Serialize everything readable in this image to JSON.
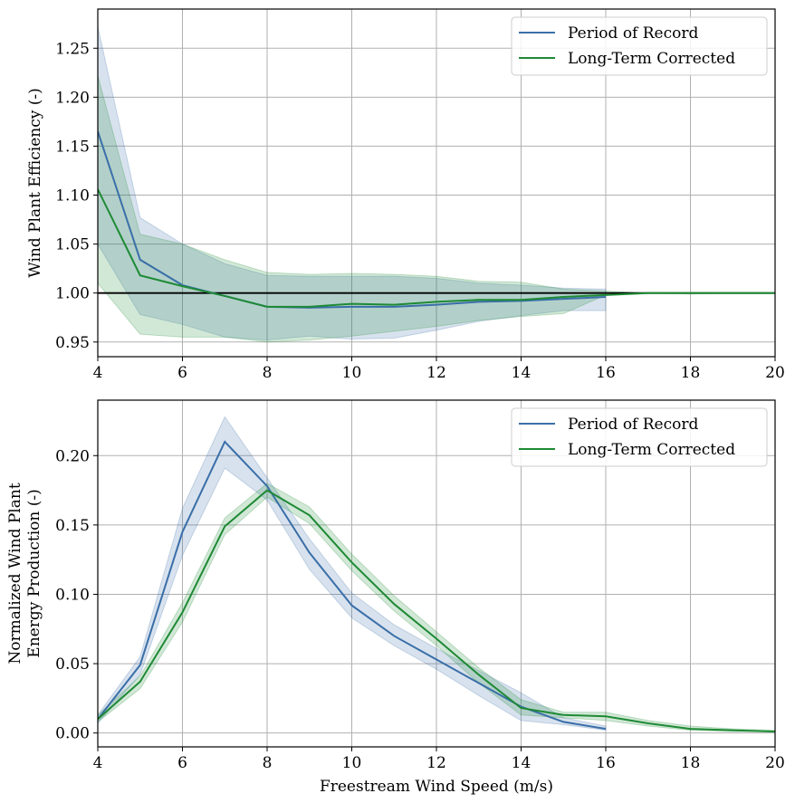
{
  "chart_data": [
    {
      "type": "line",
      "xlabel": "",
      "ylabel": "Wind Plant Efficiency (-)",
      "xlim": [
        4,
        20
      ],
      "ylim": [
        0.935,
        1.29
      ],
      "xticks": [
        "4",
        "6",
        "8",
        "10",
        "12",
        "14",
        "16",
        "18",
        "20"
      ],
      "yticks": [
        "0.95",
        "1.00",
        "1.05",
        "1.10",
        "1.15",
        "1.20",
        "1.25"
      ],
      "grid": true,
      "legend_position": "top-right",
      "reference_line": {
        "y": 1.0,
        "color": "#000000"
      },
      "series": [
        {
          "name": "Period of Record",
          "color": "#3a6fa8",
          "x": [
            4,
            5,
            6,
            7,
            8,
            9,
            10,
            11,
            12,
            13,
            14,
            15,
            16
          ],
          "y": [
            1.165,
            1.034,
            1.008,
            0.997,
            0.986,
            0.985,
            0.986,
            0.986,
            0.988,
            0.991,
            0.992,
            0.994,
            0.996
          ],
          "lower": [
            1.05,
            0.978,
            0.968,
            0.955,
            0.952,
            0.956,
            0.953,
            0.954,
            0.962,
            0.971,
            0.977,
            0.982,
            0.982
          ],
          "upper": [
            1.272,
            1.077,
            1.05,
            1.03,
            1.018,
            1.017,
            1.017,
            1.017,
            1.015,
            1.01,
            1.008,
            1.005,
            1.004
          ]
        },
        {
          "name": "Long-Term Corrected",
          "color": "#1e8a35",
          "x": [
            4,
            5,
            6,
            7,
            8,
            9,
            10,
            11,
            12,
            13,
            14,
            15,
            16,
            17,
            18,
            19,
            20
          ],
          "y": [
            1.106,
            1.018,
            1.007,
            0.997,
            0.986,
            0.986,
            0.989,
            0.988,
            0.991,
            0.993,
            0.993,
            0.996,
            0.998,
            1.0,
            1.0,
            1.0,
            1.0
          ],
          "lower": [
            1.01,
            0.958,
            0.955,
            0.955,
            0.95,
            0.952,
            0.956,
            0.961,
            0.966,
            0.972,
            0.976,
            0.979,
            0.998,
            1.0,
            0.999,
            1.0,
            1.0
          ],
          "upper": [
            1.222,
            1.06,
            1.05,
            1.034,
            1.021,
            1.019,
            1.02,
            1.019,
            1.017,
            1.012,
            1.011,
            1.004,
            1.002,
            1.0,
            1.0,
            1.0,
            1.0
          ]
        }
      ]
    },
    {
      "type": "line",
      "xlabel": "Freestream Wind Speed (m/s)",
      "ylabel": "Normalized Wind Plant\nEnergy Production (-)",
      "xlim": [
        4,
        20
      ],
      "ylim": [
        -0.01,
        0.24
      ],
      "xticks": [
        "4",
        "6",
        "8",
        "10",
        "12",
        "14",
        "16",
        "18",
        "20"
      ],
      "yticks": [
        "0.00",
        "0.05",
        "0.10",
        "0.15",
        "0.20"
      ],
      "grid": true,
      "legend_position": "top-right",
      "series": [
        {
          "name": "Period of Record",
          "color": "#3a6fa8",
          "x": [
            4,
            5,
            6,
            7,
            8,
            9,
            10,
            11,
            12,
            13,
            14,
            15,
            16
          ],
          "y": [
            0.01,
            0.049,
            0.145,
            0.21,
            0.178,
            0.13,
            0.092,
            0.07,
            0.053,
            0.036,
            0.019,
            0.008,
            0.003
          ],
          "lower": [
            0.007,
            0.042,
            0.128,
            0.191,
            0.168,
            0.118,
            0.083,
            0.063,
            0.046,
            0.027,
            0.009,
            0.006,
            0.002
          ],
          "upper": [
            0.013,
            0.055,
            0.162,
            0.228,
            0.184,
            0.14,
            0.101,
            0.078,
            0.061,
            0.045,
            0.029,
            0.011,
            0.005
          ]
        },
        {
          "name": "Long-Term Corrected",
          "color": "#1e8a35",
          "x": [
            4,
            5,
            6,
            7,
            8,
            9,
            10,
            11,
            12,
            13,
            14,
            15,
            16,
            17,
            18,
            19,
            20
          ],
          "y": [
            0.01,
            0.037,
            0.087,
            0.149,
            0.175,
            0.157,
            0.123,
            0.093,
            0.068,
            0.042,
            0.018,
            0.013,
            0.012,
            0.007,
            0.003,
            0.002,
            0.001
          ],
          "lower": [
            0.008,
            0.032,
            0.08,
            0.143,
            0.17,
            0.151,
            0.117,
            0.088,
            0.063,
            0.036,
            0.013,
            0.011,
            0.009,
            0.005,
            0.002,
            0.001,
            0.001
          ],
          "upper": [
            0.013,
            0.041,
            0.094,
            0.155,
            0.18,
            0.163,
            0.129,
            0.099,
            0.073,
            0.047,
            0.024,
            0.015,
            0.015,
            0.009,
            0.005,
            0.003,
            0.002
          ]
        }
      ]
    }
  ]
}
